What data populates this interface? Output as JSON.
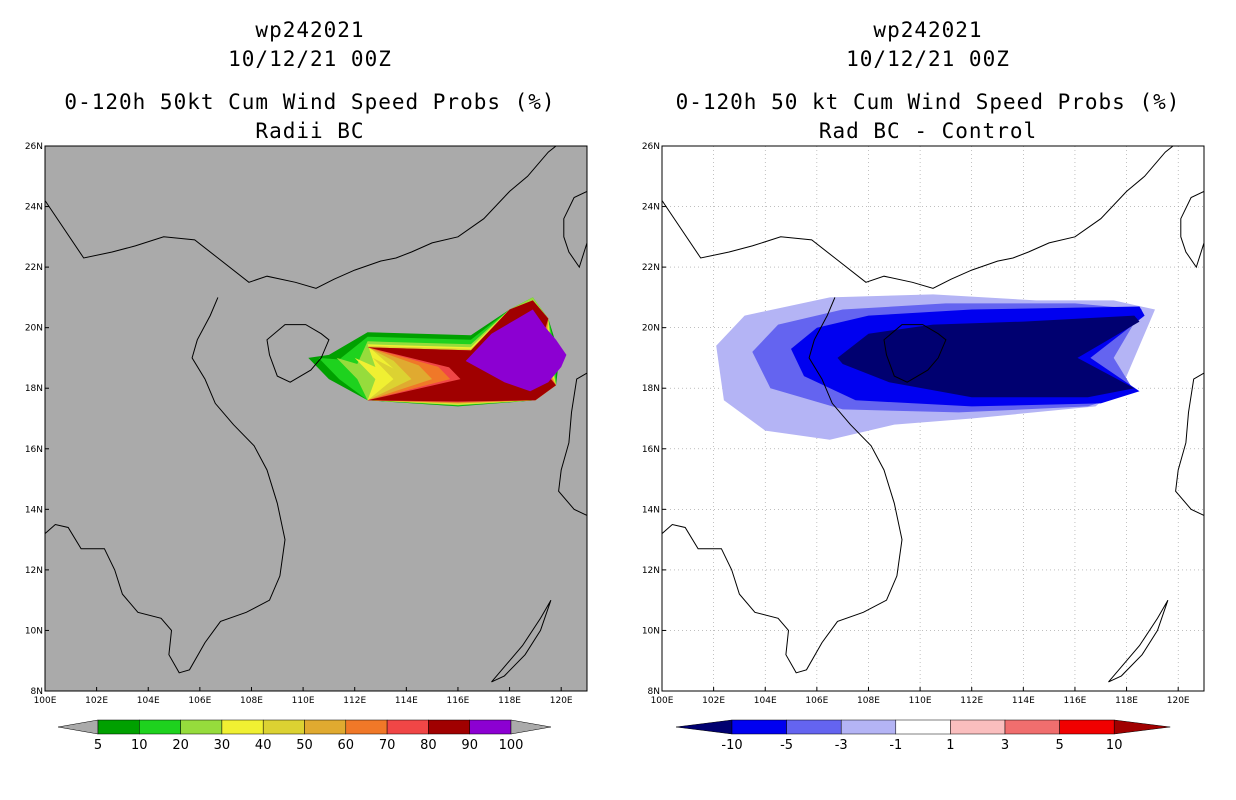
{
  "left_panel": {
    "storm_id": "wp242021",
    "datetime": "10/12/21 00Z",
    "product": "0-120h 50kt Cum Wind Speed Probs (%)",
    "subtitle": "Radii BC",
    "background_color": "#aaaaaa",
    "colorbar": {
      "labels": [
        "5",
        "10",
        "20",
        "30",
        "40",
        "50",
        "60",
        "70",
        "80",
        "90",
        "100"
      ],
      "colors": [
        "#00a000",
        "#1ed21e",
        "#96dc3c",
        "#f0f032",
        "#dcd232",
        "#e0aa30",
        "#f07828",
        "#f04646",
        "#a00000",
        "#8c00d2"
      ]
    }
  },
  "right_panel": {
    "storm_id": "wp242021",
    "datetime": "10/12/21 00Z",
    "product": "0-120h 50 kt Cum Wind Speed Probs (%)",
    "subtitle": "Rad BC - Control",
    "background_color": "#ffffff",
    "colorbar": {
      "labels": [
        "-10",
        "-5",
        "-3",
        "-1",
        "1",
        "3",
        "5",
        "10"
      ],
      "colors": [
        "#000070",
        "#0000f0",
        "#6464f0",
        "#b4b4f5",
        "#ffffff",
        "#fabebe",
        "#f06e6e",
        "#f00000",
        "#a00000"
      ]
    }
  },
  "map_axes": {
    "lat_labels": [
      "26N",
      "24N",
      "22N",
      "20N",
      "18N",
      "16N",
      "14N",
      "12N",
      "10N",
      "8N"
    ],
    "lon_labels": [
      "100E",
      "102E",
      "104E",
      "106E",
      "108E",
      "110E",
      "112E",
      "114E",
      "116E",
      "118E",
      "120E"
    ],
    "lon_range": [
      100,
      121
    ],
    "lat_range": [
      8,
      26
    ]
  }
}
